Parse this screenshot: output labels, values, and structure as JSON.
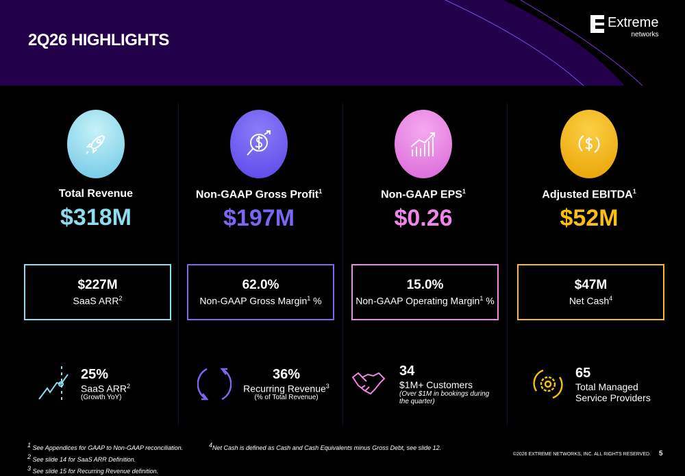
{
  "header": {
    "title": "2Q26 HIGHLIGHTS",
    "logo_name": "Extreme",
    "logo_sub": "networks"
  },
  "colors": {
    "header_bg": "#22004a",
    "teal": "#8fdcef",
    "purple": "#7a68f5",
    "pink": "#ef86e8",
    "gold": "#fbbf12"
  },
  "columns": [
    {
      "label": "Total Revenue",
      "sup": "",
      "value": "$318M",
      "box_value": "$227M",
      "box_desc": "SaaS ARR",
      "box_sup": "2",
      "stat_value": "25%",
      "stat_desc": "SaaS ARR",
      "stat_sup": "2",
      "stat_note": "(Growth YoY)"
    },
    {
      "label": "Non-GAAP Gross Profit",
      "sup": "1",
      "value": "$197M",
      "box_value": "62.0%",
      "box_desc": "Non-GAAP Gross Margin",
      "box_sup": "1",
      "box_suffix": " %",
      "stat_value": "36%",
      "stat_desc": "Recurring Revenue",
      "stat_sup": "3",
      "stat_note": "(% of Total Revenue)"
    },
    {
      "label": "Non-GAAP EPS",
      "sup": "1",
      "value": "$0.26",
      "box_value": "15.0%",
      "box_desc": "Non-GAAP Operating Margin",
      "box_sup": "1",
      "box_suffix": " %",
      "stat_value": "34",
      "stat_desc": "$1M+ Customers",
      "stat_note": "(Over $1M in bookings during the quarter)"
    },
    {
      "label": "Adjusted EBITDA",
      "sup": "1",
      "value": "$52M",
      "box_value": "$47M",
      "box_desc": "Net Cash",
      "box_sup": "4",
      "stat_value": "65",
      "stat_desc": "Total Managed Service Providers"
    }
  ],
  "footnotes": {
    "f1": "See Appendices for GAAP to Non-GAAP reconciliation.",
    "f1n": "1",
    "f2": "See slide 14 for SaaS ARR Definition.",
    "f2n": "2",
    "f3": "See slide 15 for Recurring Revenue definition.",
    "f3n": "3",
    "f4": "Net Cash is defined as Cash and Cash Equivalents minus Gross Debt, see slide 12.",
    "f4n": "4"
  },
  "copyright": "©2026 EXTREME NETWORKS, INC. ALL RIGHTS RESERVED.",
  "page_number": "5"
}
